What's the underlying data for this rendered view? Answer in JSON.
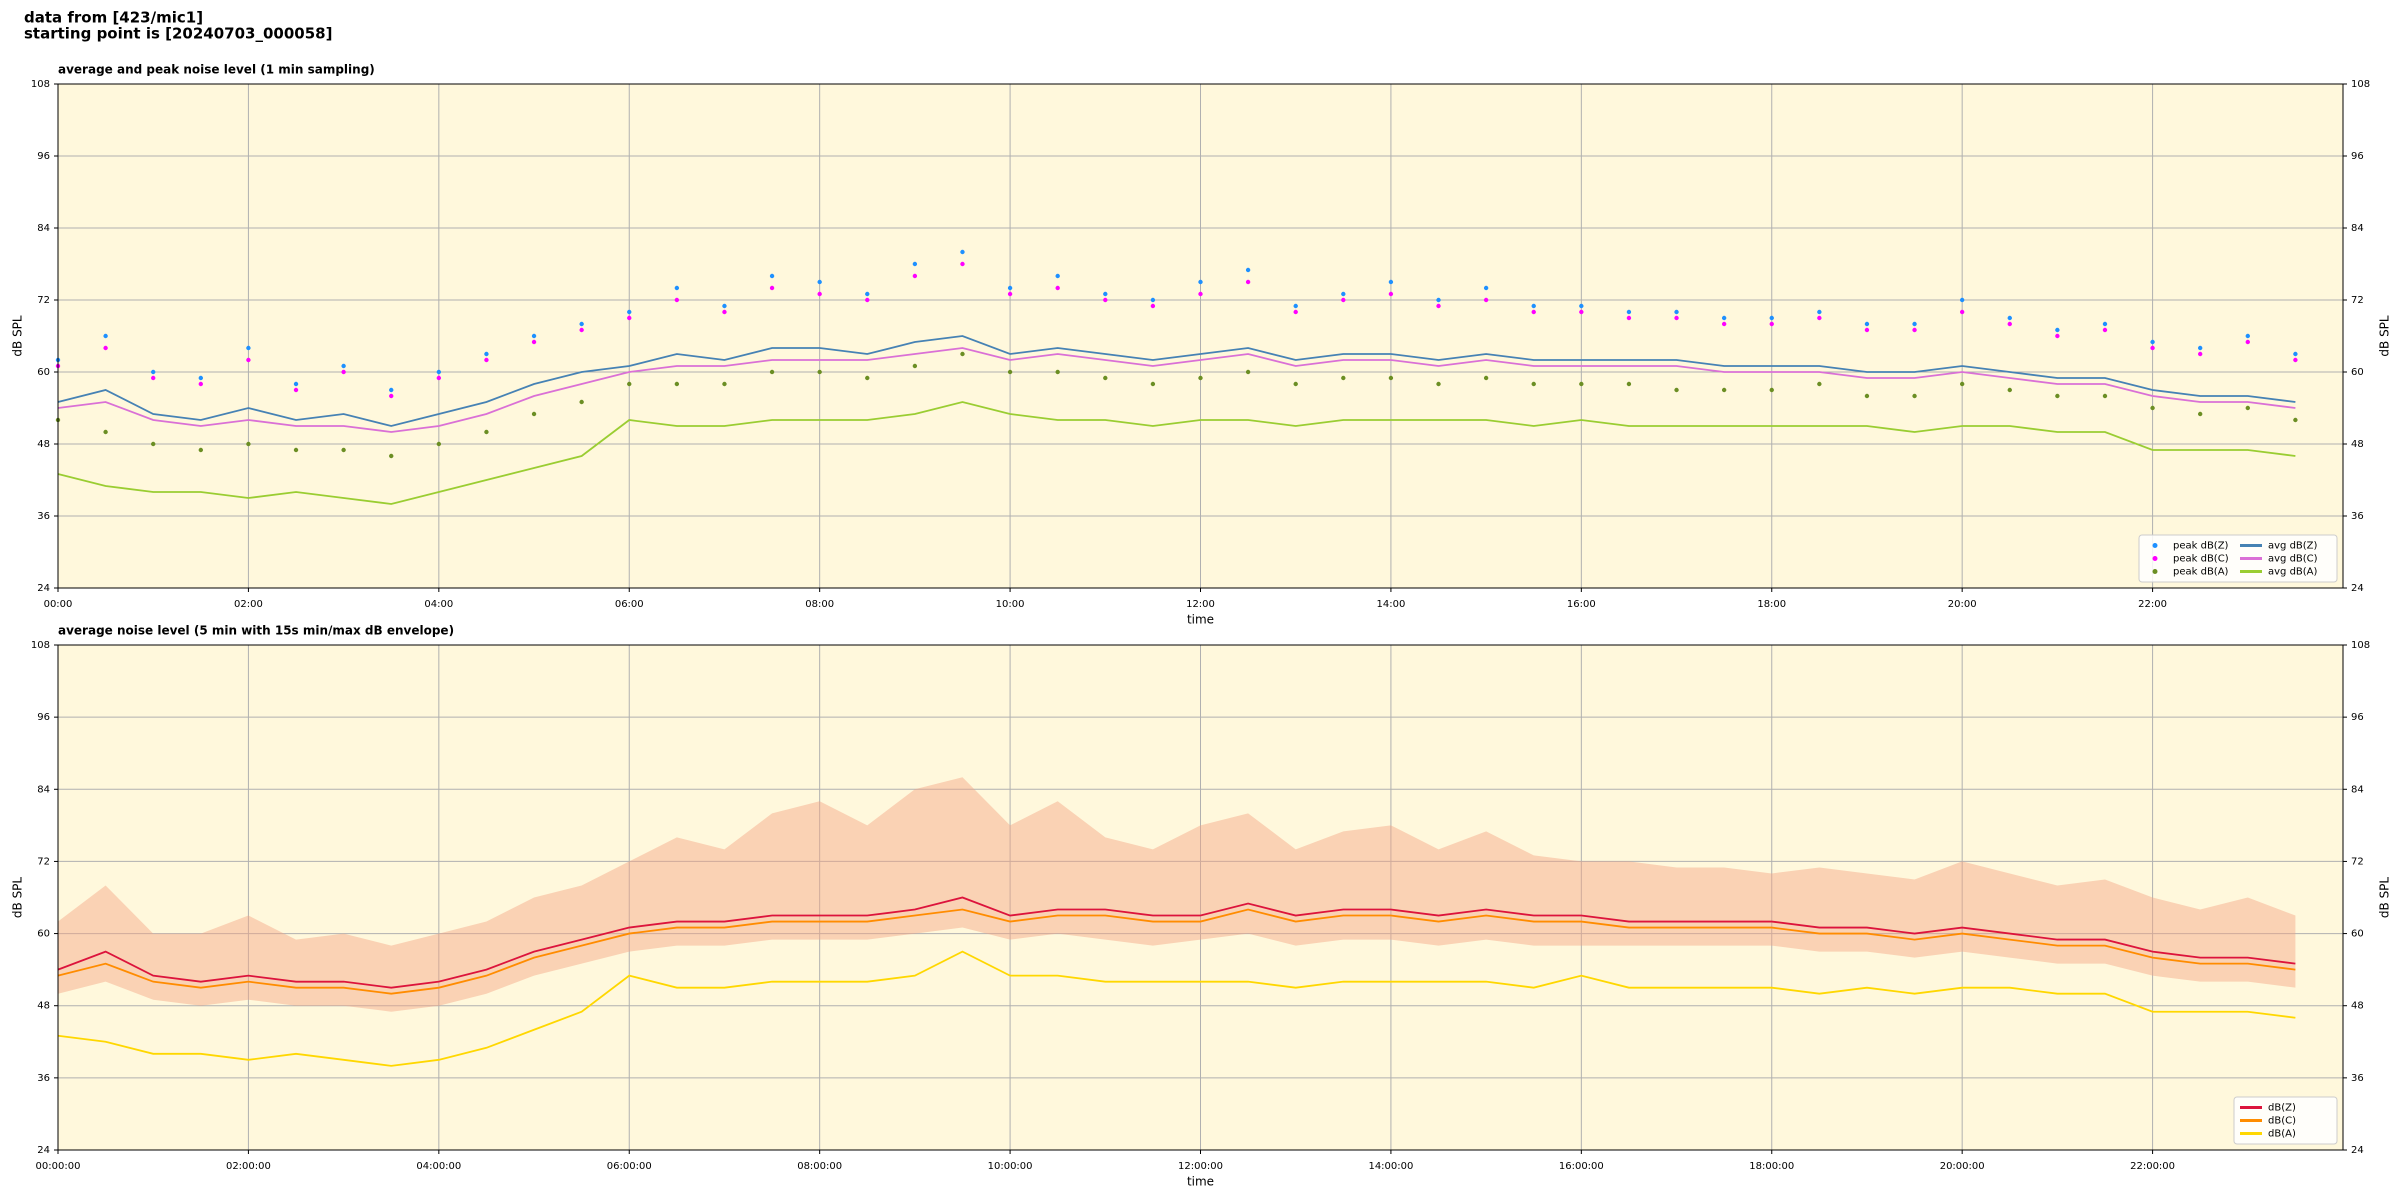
{
  "header": {
    "lines": [
      "data from [423/mic1]",
      "starting point is [20240703_000058]"
    ]
  },
  "chart_data": [
    {
      "type": "line",
      "title": "average and peak noise level (1 min sampling)",
      "xlabel": "time",
      "ylabel": "dB SPL",
      "background": "#fff8dc",
      "grid": true,
      "legend": "lower right",
      "legend_columns": 2,
      "xlim": [
        0,
        24
      ],
      "ylim": [
        24,
        108
      ],
      "yticks": [
        24,
        36,
        48,
        60,
        72,
        84,
        96,
        108
      ],
      "xticks": [
        {
          "value": 0,
          "label": "00:00"
        },
        {
          "value": 2,
          "label": "02:00"
        },
        {
          "value": 4,
          "label": "04:00"
        },
        {
          "value": 6,
          "label": "06:00"
        },
        {
          "value": 8,
          "label": "08:00"
        },
        {
          "value": 10,
          "label": "10:00"
        },
        {
          "value": 12,
          "label": "12:00"
        },
        {
          "value": 14,
          "label": "14:00"
        },
        {
          "value": 16,
          "label": "16:00"
        },
        {
          "value": 18,
          "label": "18:00"
        },
        {
          "value": 20,
          "label": "20:00"
        },
        {
          "value": 22,
          "label": "22:00"
        }
      ],
      "x": [
        0,
        0.5,
        1,
        1.5,
        2,
        2.5,
        3,
        3.5,
        4,
        4.5,
        5,
        5.5,
        6,
        6.5,
        7,
        7.5,
        8,
        8.5,
        9,
        9.5,
        10,
        10.5,
        11,
        11.5,
        12,
        12.5,
        13,
        13.5,
        14,
        14.5,
        15,
        15.5,
        16,
        16.5,
        17,
        17.5,
        18,
        18.5,
        19,
        19.5,
        20,
        20.5,
        21,
        21.5,
        22,
        22.5,
        23,
        23.5
      ],
      "series": [
        {
          "name": "peak dB(Z)",
          "type": "scatter",
          "color": "#1e90ff",
          "values": [
            62,
            66,
            60,
            59,
            64,
            58,
            61,
            57,
            60,
            63,
            66,
            68,
            70,
            74,
            71,
            76,
            75,
            73,
            78,
            80,
            74,
            76,
            73,
            72,
            75,
            77,
            71,
            73,
            75,
            72,
            74,
            71,
            71,
            70,
            70,
            69,
            69,
            70,
            68,
            68,
            72,
            69,
            67,
            68,
            65,
            64,
            66,
            63
          ]
        },
        {
          "name": "peak dB(C)",
          "type": "scatter",
          "color": "#ff00ff",
          "values": [
            61,
            64,
            59,
            58,
            62,
            57,
            60,
            56,
            59,
            62,
            65,
            67,
            69,
            72,
            70,
            74,
            73,
            72,
            76,
            78,
            73,
            74,
            72,
            71,
            73,
            75,
            70,
            72,
            73,
            71,
            72,
            70,
            70,
            69,
            69,
            68,
            68,
            69,
            67,
            67,
            70,
            68,
            66,
            67,
            64,
            63,
            65,
            62
          ]
        },
        {
          "name": "peak dB(A)",
          "type": "scatter",
          "color": "#6b8e23",
          "values": [
            52,
            50,
            48,
            47,
            48,
            47,
            47,
            46,
            48,
            50,
            53,
            55,
            58,
            58,
            58,
            60,
            60,
            59,
            61,
            63,
            60,
            60,
            59,
            58,
            59,
            60,
            58,
            59,
            59,
            58,
            59,
            58,
            58,
            58,
            57,
            57,
            57,
            58,
            56,
            56,
            58,
            57,
            56,
            56,
            54,
            53,
            54,
            52
          ]
        },
        {
          "name": "avg dB(Z)",
          "type": "line",
          "color": "#4682b4",
          "values": [
            55,
            57,
            53,
            52,
            54,
            52,
            53,
            51,
            53,
            55,
            58,
            60,
            61,
            63,
            62,
            64,
            64,
            63,
            65,
            66,
            63,
            64,
            63,
            62,
            63,
            64,
            62,
            63,
            63,
            62,
            63,
            62,
            62,
            62,
            62,
            61,
            61,
            61,
            60,
            60,
            61,
            60,
            59,
            59,
            57,
            56,
            56,
            55
          ]
        },
        {
          "name": "avg dB(C)",
          "type": "line",
          "color": "#da70d6",
          "values": [
            54,
            55,
            52,
            51,
            52,
            51,
            51,
            50,
            51,
            53,
            56,
            58,
            60,
            61,
            61,
            62,
            62,
            62,
            63,
            64,
            62,
            63,
            62,
            61,
            62,
            63,
            61,
            62,
            62,
            61,
            62,
            61,
            61,
            61,
            61,
            60,
            60,
            60,
            59,
            59,
            60,
            59,
            58,
            58,
            56,
            55,
            55,
            54
          ]
        },
        {
          "name": "avg dB(A)",
          "type": "line",
          "color": "#9acd32",
          "values": [
            43,
            41,
            40,
            40,
            39,
            40,
            39,
            38,
            40,
            42,
            44,
            46,
            52,
            51,
            51,
            52,
            52,
            52,
            53,
            55,
            53,
            52,
            52,
            51,
            52,
            52,
            51,
            52,
            52,
            52,
            52,
            51,
            52,
            51,
            51,
            51,
            51,
            51,
            51,
            50,
            51,
            51,
            50,
            50,
            47,
            47,
            47,
            46
          ]
        }
      ]
    },
    {
      "type": "line",
      "title": "average noise level (5 min with 15s min/max dB envelope)",
      "xlabel": "time",
      "ylabel": "dB SPL",
      "background": "#fff8dc",
      "grid": true,
      "legend": "lower right",
      "legend_columns": 1,
      "xlim": [
        0,
        24
      ],
      "ylim": [
        24,
        108
      ],
      "yticks": [
        24,
        36,
        48,
        60,
        72,
        84,
        96,
        108
      ],
      "xticks": [
        {
          "value": 0,
          "label": "00:00:00"
        },
        {
          "value": 2,
          "label": "02:00:00"
        },
        {
          "value": 4,
          "label": "04:00:00"
        },
        {
          "value": 6,
          "label": "06:00:00"
        },
        {
          "value": 8,
          "label": "08:00:00"
        },
        {
          "value": 10,
          "label": "10:00:00"
        },
        {
          "value": 12,
          "label": "12:00:00"
        },
        {
          "value": 14,
          "label": "14:00:00"
        },
        {
          "value": 16,
          "label": "16:00:00"
        },
        {
          "value": 18,
          "label": "18:00:00"
        },
        {
          "value": 20,
          "label": "20:00:00"
        },
        {
          "value": 22,
          "label": "22:00:00"
        }
      ],
      "x": [
        0,
        0.5,
        1,
        1.5,
        2,
        2.5,
        3,
        3.5,
        4,
        4.5,
        5,
        5.5,
        6,
        6.5,
        7,
        7.5,
        8,
        8.5,
        9,
        9.5,
        10,
        10.5,
        11,
        11.5,
        12,
        12.5,
        13,
        13.5,
        14,
        14.5,
        15,
        15.5,
        16,
        16.5,
        17,
        17.5,
        18,
        18.5,
        19,
        19.5,
        20,
        20.5,
        21,
        21.5,
        22,
        22.5,
        23,
        23.5
      ],
      "envelope": {
        "color": "#f4a582",
        "lower": [
          50,
          52,
          49,
          48,
          49,
          48,
          48,
          47,
          48,
          50,
          53,
          55,
          57,
          58,
          58,
          59,
          59,
          59,
          60,
          61,
          59,
          60,
          59,
          58,
          59,
          60,
          58,
          59,
          59,
          58,
          59,
          58,
          58,
          58,
          58,
          58,
          58,
          57,
          57,
          56,
          57,
          56,
          55,
          55,
          53,
          52,
          52,
          51
        ],
        "upper": [
          62,
          68,
          60,
          60,
          63,
          59,
          60,
          58,
          60,
          62,
          66,
          68,
          72,
          76,
          74,
          80,
          82,
          78,
          84,
          86,
          78,
          82,
          76,
          74,
          78,
          80,
          74,
          77,
          78,
          74,
          77,
          73,
          72,
          72,
          71,
          71,
          70,
          71,
          70,
          69,
          72,
          70,
          68,
          69,
          66,
          64,
          66,
          63
        ]
      },
      "series": [
        {
          "name": "dB(Z)",
          "type": "line",
          "color": "#dc143c",
          "values": [
            54,
            57,
            53,
            52,
            53,
            52,
            52,
            51,
            52,
            54,
            57,
            59,
            61,
            62,
            62,
            63,
            63,
            63,
            64,
            66,
            63,
            64,
            64,
            63,
            63,
            65,
            63,
            64,
            64,
            63,
            64,
            63,
            63,
            62,
            62,
            62,
            62,
            61,
            61,
            60,
            61,
            60,
            59,
            59,
            57,
            56,
            56,
            55
          ]
        },
        {
          "name": "dB(C)",
          "type": "line",
          "color": "#ff8c00",
          "values": [
            53,
            55,
            52,
            51,
            52,
            51,
            51,
            50,
            51,
            53,
            56,
            58,
            60,
            61,
            61,
            62,
            62,
            62,
            63,
            64,
            62,
            63,
            63,
            62,
            62,
            64,
            62,
            63,
            63,
            62,
            63,
            62,
            62,
            61,
            61,
            61,
            61,
            60,
            60,
            59,
            60,
            59,
            58,
            58,
            56,
            55,
            55,
            54
          ]
        },
        {
          "name": "dB(A)",
          "type": "line",
          "color": "#ffd700",
          "values": [
            43,
            42,
            40,
            40,
            39,
            40,
            39,
            38,
            39,
            41,
            44,
            47,
            53,
            51,
            51,
            52,
            52,
            52,
            53,
            57,
            53,
            53,
            52,
            52,
            52,
            52,
            51,
            52,
            52,
            52,
            52,
            51,
            53,
            51,
            51,
            51,
            51,
            50,
            51,
            50,
            51,
            51,
            50,
            50,
            47,
            47,
            47,
            46
          ]
        }
      ]
    }
  ]
}
